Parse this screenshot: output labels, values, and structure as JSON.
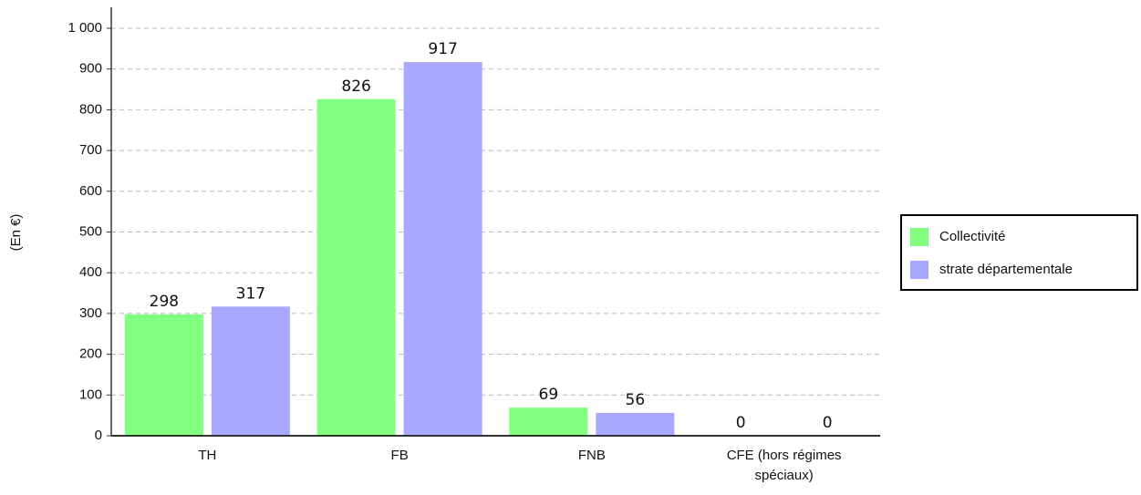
{
  "chart_data": {
    "type": "bar",
    "y_label": "(En €)",
    "categories": [
      "TH",
      "FB",
      "FNB",
      "CFE (hors régimes spéciaux)"
    ],
    "series": [
      {
        "name": "Collectivité",
        "color": "#80ff80",
        "values": [
          298,
          826,
          69,
          0
        ]
      },
      {
        "name": "strate départementale",
        "color": "#a8a8ff",
        "values": [
          317,
          917,
          56,
          0
        ]
      }
    ],
    "ylim": [
      0,
      1000
    ],
    "yticks": [
      0,
      100,
      200,
      300,
      400,
      500,
      600,
      700,
      800,
      900,
      {
        "value": 1000,
        "label": "1 000"
      }
    ],
    "grid": true,
    "legend": "right"
  }
}
